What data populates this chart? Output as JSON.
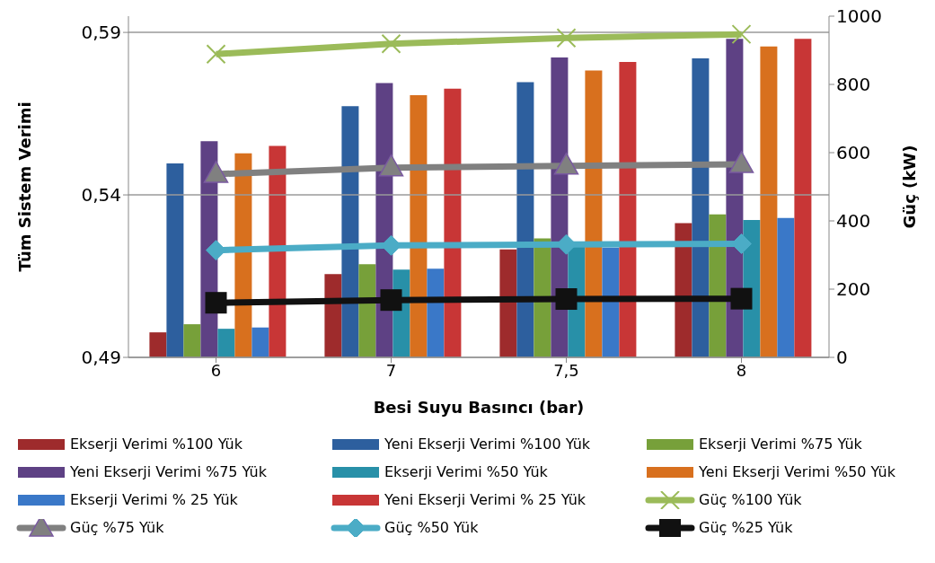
{
  "chart_data": {
    "type": "bar",
    "xlabel": "Besi Suyu Basıncı (bar)",
    "ylabel": "Tüm Sistem Verimi",
    "y2label": "Güç (kW)",
    "categories": [
      "6",
      "7",
      "7,5",
      "8"
    ],
    "ylim": [
      0.49,
      0.595
    ],
    "yticks": [
      {
        "value": 0.49,
        "label": "0,49"
      },
      {
        "value": 0.54,
        "label": "0,54"
      },
      {
        "value": 0.59,
        "label": "0,59"
      }
    ],
    "y2lim": [
      0,
      1000
    ],
    "y2ticks": [
      0,
      200,
      400,
      600,
      800,
      1000
    ],
    "grid": "y",
    "legend": "bottom",
    "series": [
      {
        "name": "Ekserji Verimi %100 Yük",
        "color": "#9e2b2c",
        "values": [
          0.4977,
          0.5156,
          0.5232,
          0.5313
        ]
      },
      {
        "name": "Yeni Ekserji Verimi %100 Yük",
        "color": "#2d5f9e",
        "values": [
          0.5497,
          0.5673,
          0.5747,
          0.582
        ]
      },
      {
        "name": "Ekserji Verimi %75 Yük",
        "color": "#77a03a",
        "values": [
          0.5002,
          0.5187,
          0.5266,
          0.534
        ]
      },
      {
        "name": "Yeni Ekserji Verimi %75 Yük",
        "color": "#5e4184",
        "values": [
          0.5565,
          0.5744,
          0.5823,
          0.588
        ]
      },
      {
        "name": "Ekserji Verimi %50 Yük",
        "color": "#2890a8",
        "values": [
          0.4988,
          0.517,
          0.524,
          0.5323
        ]
      },
      {
        "name": "Yeni Ekserji Verimi %50 Yük",
        "color": "#d8701e",
        "values": [
          0.5528,
          0.5707,
          0.5783,
          0.5857
        ]
      },
      {
        "name": "Ekserji Verimi % 25 Yük",
        "color": "#3a78c8",
        "values": [
          0.4992,
          0.5173,
          0.5238,
          0.5329
        ]
      },
      {
        "name": "Yeni Ekserji Verimi % 25 Yük",
        "color": "#c83636",
        "values": [
          0.5551,
          0.5727,
          0.5809,
          0.588
        ]
      },
      {
        "name": "Güç  %100 Yük",
        "type": "line",
        "axis": "y2",
        "marker": "cross",
        "color": "#9bbb59",
        "values": [
          889,
          919,
          936,
          947
        ]
      },
      {
        "name": "Güç  %75 Yük",
        "type": "line",
        "axis": "y2",
        "marker": "triangle",
        "color": "#808080",
        "values": [
          537,
          556,
          561,
          566
        ]
      },
      {
        "name": "Güç  %50 Yük",
        "type": "line",
        "axis": "y2",
        "marker": "diamond",
        "color": "#4bacc6",
        "values": [
          314,
          328,
          331,
          333
        ]
      },
      {
        "name": "Güç  %25 Yük",
        "type": "line",
        "axis": "y2",
        "marker": "square",
        "color": "#111111",
        "values": [
          160,
          168,
          171,
          172
        ]
      }
    ]
  }
}
